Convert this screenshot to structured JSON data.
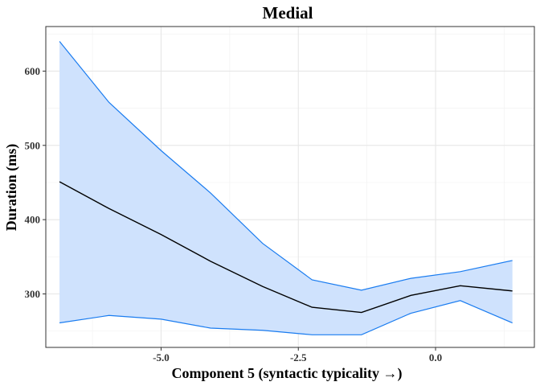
{
  "chart_data": {
    "type": "area",
    "title": "Medial",
    "xlabel": "Component 5 (syntactic typicality →)",
    "ylabel": "Duration (ms)",
    "xlim": [
      -7.1,
      1.8
    ],
    "ylim": [
      228,
      660
    ],
    "x_ticks": [
      -5.0,
      -2.5,
      0.0
    ],
    "x_tick_labels": [
      "-5.0",
      "-2.5",
      "0.0"
    ],
    "x_minor_ticks": [
      -6.25,
      -3.75,
      -1.25,
      1.25
    ],
    "y_ticks": [
      300,
      400,
      500,
      600
    ],
    "y_tick_labels": [
      "300",
      "400",
      "500",
      "600"
    ],
    "y_minor_ticks": [
      250,
      350,
      450,
      550,
      650
    ],
    "grid": true,
    "x": [
      -6.85,
      -5.95,
      -5.0,
      -4.1,
      -3.15,
      -2.25,
      -1.35,
      -0.45,
      0.45,
      1.4
    ],
    "series": [
      {
        "name": "",
        "role": "estimate",
        "values": [
          451,
          415,
          380,
          344,
          310,
          282,
          275,
          298,
          311,
          304
        ]
      },
      {
        "name": "",
        "role": "upper",
        "values": [
          640,
          558,
          493,
          436,
          368,
          319,
          305,
          321,
          330,
          345
        ]
      },
      {
        "name": "",
        "role": "lower",
        "values": [
          261,
          271,
          266,
          254,
          251,
          245,
          245,
          274,
          291,
          261
        ]
      }
    ],
    "colors": {
      "ribbon_fill": "#cfe2fd",
      "ribbon_edge": "#1a7cf0",
      "estimate": "#000000",
      "grid_major": "#e6e6e6",
      "grid_minor": "#f2f2f2",
      "panel_border": "#333333"
    }
  }
}
